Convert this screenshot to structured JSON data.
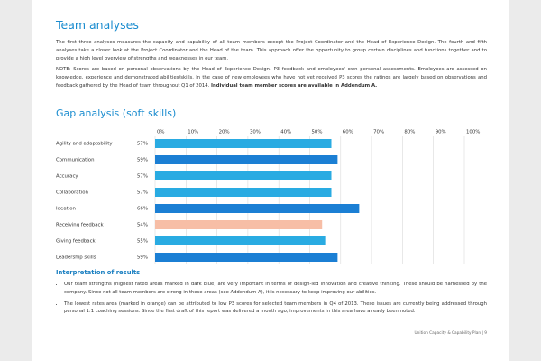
{
  "header": {
    "title": "Team analyses"
  },
  "intro": "The first three analyses measures the capacity and capability of all team members except the Project Coordinator and the Head of Experience Design. The fourth and fifth analyses take a closer look at the Project Coordinator and the Head of the team. This approach offer the opportunity to group certain disciplines and functions together and to provide a high level overview of strengths and weaknesses in our team.",
  "note": {
    "text": "NOTE: Scores are based on personal observations by the Head of Experience Design, P3 feedback and employees' own personal assessments. Employees are assessed on knowledge, experience and demonstrated abilities/skills. In the case of new employees who have not yet received P3 scores the ratings are largely based on observations and feedback gathered by the Head of team throughout Q1 of 2014.",
    "bold": "Individual team member scores are available in Addendum A."
  },
  "chart_data": {
    "type": "bar",
    "orientation": "horizontal",
    "title": "Gap analysis (soft skills)",
    "categories": [
      "Agility and adaptability",
      "Communication",
      "Accuracy",
      "Collaboration",
      "Ideation",
      "Receiving feedback",
      "Giving feedback",
      "Leadership skills"
    ],
    "values": [
      57,
      59,
      57,
      57,
      66,
      54,
      55,
      59
    ],
    "value_labels": [
      "57%",
      "59%",
      "57%",
      "57%",
      "66%",
      "54%",
      "55%",
      "59%"
    ],
    "colors": [
      "#29abe2",
      "#1b7fd4",
      "#29abe2",
      "#29abe2",
      "#1b7fd4",
      "#f7bea6",
      "#29abe2",
      "#1b7fd4"
    ],
    "xlim": [
      0,
      100
    ],
    "xticks": [
      {
        "value": 0,
        "label": "0%"
      },
      {
        "value": 10,
        "label": "10%"
      },
      {
        "value": 20,
        "label": "20%"
      },
      {
        "value": 30,
        "label": "30%"
      },
      {
        "value": 40,
        "label": "40%"
      },
      {
        "value": 50,
        "label": "50%"
      },
      {
        "value": 60,
        "label": "60%"
      },
      {
        "value": 70,
        "label": "70%"
      },
      {
        "value": 80,
        "label": "80%"
      },
      {
        "value": 90,
        "label": "90%"
      },
      {
        "value": 100,
        "label": "100%"
      }
    ],
    "grid": true
  },
  "interpretation": {
    "title": "Interpretation of results",
    "bullets": [
      "Our team strengths (highest rated areas marked in dark blue) are very important in terms of design-led innovation and creative thinking. These should be harnessed by the company. Since not all team members are strong in these areas (see Addendum A), it is necessary to keep improving our abilities.",
      "The lowest rates area (marked in orange) can be attributed to low P3 scores for selected team members in Q4 of 2013. These issues are currently being addressed through personal 1:1 coaching sessions. Since the first draft of this report was delivered a month ago, improvements in this area have already been noted."
    ]
  },
  "footer": "Unition Capacity & Capability Plan | 9"
}
